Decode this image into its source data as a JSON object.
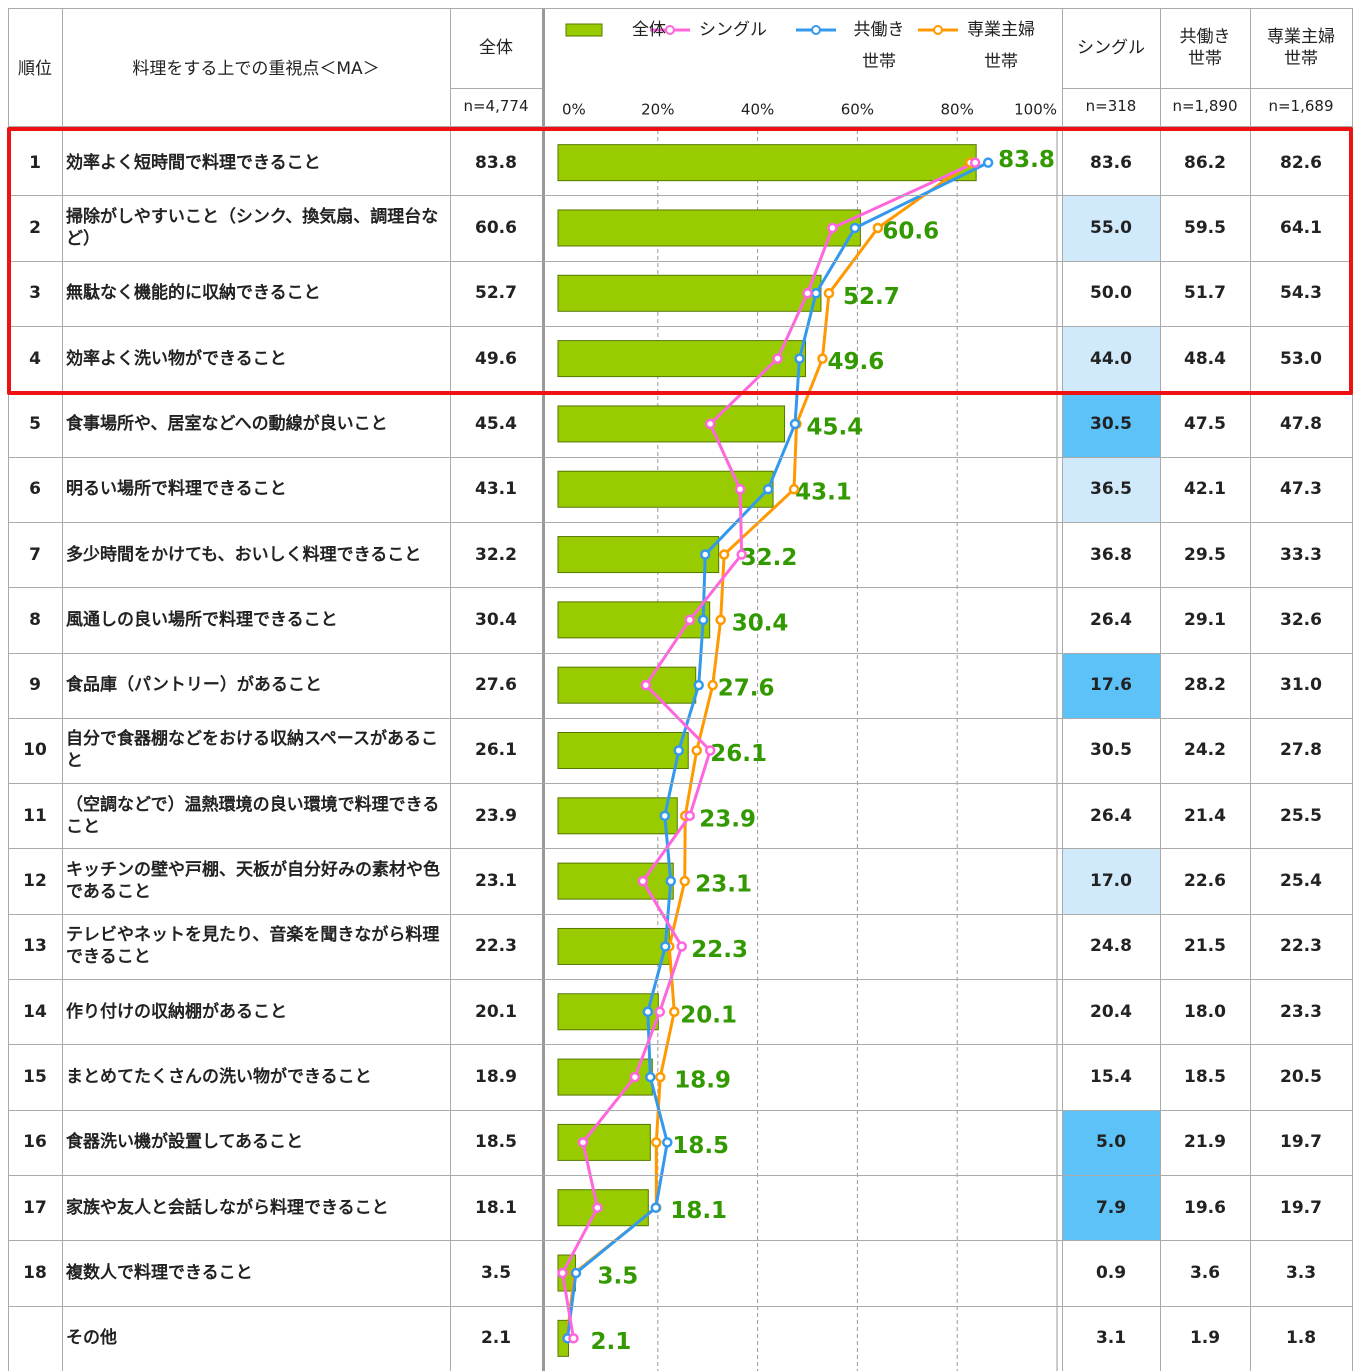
{
  "chart_data": {
    "type": "bar-line-table",
    "rank_label": "順位",
    "item_label": "料理をする上での重視点＜MA＞",
    "ranks": [
      1,
      2,
      3,
      4,
      5,
      6,
      7,
      8,
      9,
      10,
      11,
      12,
      13,
      14,
      15,
      16,
      17,
      18,
      null
    ],
    "categories": [
      "効率よく短時間で料理できること",
      "掃除がしやすいこと（シンク、換気扇、調理台など）",
      "無駄なく機能的に収納できること",
      "効率よく洗い物ができること",
      "食事場所や、居室などへの動線が良いこと",
      "明るい場所で料理できること",
      "多少時間をかけても、おいしく料理できること",
      "風通しの良い場所で料理できること",
      "食品庫（パントリー）があること",
      "自分で食器棚などをおける収納スペースがあること",
      "（空調などで）温熱環境の良い環境で料理できること",
      "キッチンの壁や戸棚、天板が自分好みの素材や色であること",
      "テレビやネットを見たり、音楽を聞きながら料理できること",
      "作り付けの収納棚があること",
      "まとめてたくさんの洗い物ができること",
      "食器洗い機が設置してあること",
      "家族や友人と会話しながら料理できること",
      "複数人で料理できること",
      "その他"
    ],
    "series": [
      {
        "name": "全体",
        "n": "n=4,774",
        "color": "#99cc00",
        "values": [
          83.8,
          60.6,
          52.7,
          49.6,
          45.4,
          43.1,
          32.2,
          30.4,
          27.6,
          26.1,
          23.9,
          23.1,
          22.3,
          20.1,
          18.9,
          18.5,
          18.1,
          3.5,
          2.1
        ]
      },
      {
        "name": "シングル",
        "n": "n=318",
        "color": "#ff66dd",
        "values": [
          83.6,
          55.0,
          50.0,
          44.0,
          30.5,
          36.5,
          36.8,
          26.4,
          17.6,
          30.5,
          26.4,
          17.0,
          24.8,
          20.4,
          15.4,
          5.0,
          7.9,
          0.9,
          3.1
        ],
        "value_labels": [
          "83.6",
          "55.0",
          "50.0",
          "44.0",
          "30.5",
          "36.5",
          "36.8",
          "26.4",
          "17.6",
          "30.5",
          "26.4",
          "17.0",
          "24.8",
          "20.4",
          "15.4",
          "5.0",
          "7.9",
          "0.9",
          "3.1"
        ],
        "highlight": [
          null,
          "#d0eafc",
          null,
          "#d0eafc",
          "#5cc2f7",
          "#d0eafc",
          null,
          null,
          "#5cc2f7",
          null,
          null,
          "#d0eafc",
          null,
          null,
          null,
          "#5cc2f7",
          "#5cc2f7",
          null,
          null
        ]
      },
      {
        "name": "共働き\n世帯",
        "n": "n=1,890",
        "color": "#3399ee",
        "values": [
          86.2,
          59.5,
          51.7,
          48.4,
          47.5,
          42.1,
          29.5,
          29.1,
          28.2,
          24.2,
          21.4,
          22.6,
          21.5,
          18.0,
          18.5,
          21.9,
          19.6,
          3.6,
          1.9
        ],
        "value_labels": [
          "86.2",
          "59.5",
          "51.7",
          "48.4",
          "47.5",
          "42.1",
          "29.5",
          "29.1",
          "28.2",
          "24.2",
          "21.4",
          "22.6",
          "21.5",
          "18.0",
          "18.5",
          "21.9",
          "19.6",
          "3.6",
          "1.9"
        ]
      },
      {
        "name": "専業主婦\n世帯",
        "n": "n=1,689",
        "color": "#ff9900",
        "values": [
          82.6,
          64.1,
          54.3,
          53.0,
          47.8,
          47.3,
          33.3,
          32.6,
          31.0,
          27.8,
          25.5,
          25.4,
          22.3,
          23.3,
          20.5,
          19.7,
          19.7,
          3.3,
          1.8
        ],
        "value_labels": [
          "82.6",
          "64.1",
          "54.3",
          "53.0",
          "47.8",
          "47.3",
          "33.3",
          "32.6",
          "31.0",
          "27.8",
          "25.5",
          "25.4",
          "22.3",
          "23.3",
          "20.5",
          "19.7",
          "19.7",
          "3.3",
          "1.8"
        ]
      }
    ],
    "label_color": "#339900",
    "xlim": [
      0,
      100
    ],
    "xticks": [
      {
        "value": 0,
        "label": "0%"
      },
      {
        "value": 20,
        "label": "20%"
      },
      {
        "value": 40,
        "label": "40%"
      },
      {
        "value": 60,
        "label": "60%"
      },
      {
        "value": 80,
        "label": "80%"
      },
      {
        "value": 100,
        "label": "100%"
      }
    ],
    "grid": true
  }
}
